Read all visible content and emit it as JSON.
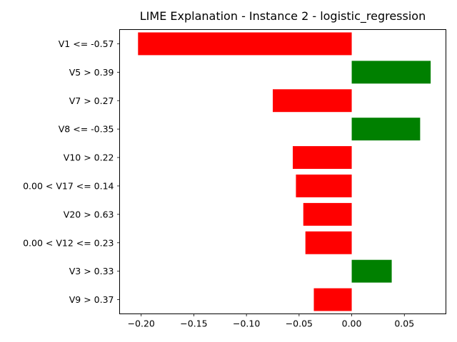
{
  "chart_data": {
    "type": "bar",
    "orientation": "horizontal",
    "title": "LIME Explanation - Instance 2 - logistic_regression",
    "xlabel": "",
    "ylabel": "",
    "xlim": [
      -0.2205,
      0.0895
    ],
    "xticks": [
      -0.2,
      -0.15,
      -0.1,
      -0.05,
      0.0,
      0.05
    ],
    "xtick_labels": [
      "−0.20",
      "−0.15",
      "−0.10",
      "−0.05",
      "0.00",
      "0.05"
    ],
    "grid": false,
    "categories": [
      "V1 <= -0.57",
      "V5 > 0.39",
      "V7 > 0.27",
      "V8 <= -0.35",
      "V10 > 0.22",
      "0.00 < V17 <= 0.14",
      "V20 > 0.63",
      "0.00 < V12 <= 0.23",
      "V3 > 0.33",
      "V9 > 0.37"
    ],
    "values": [
      -0.203,
      0.075,
      -0.075,
      0.065,
      -0.056,
      -0.053,
      -0.046,
      -0.044,
      0.038,
      -0.036
    ],
    "colors": {
      "positive": "#008000",
      "negative": "#ff0000"
    }
  }
}
